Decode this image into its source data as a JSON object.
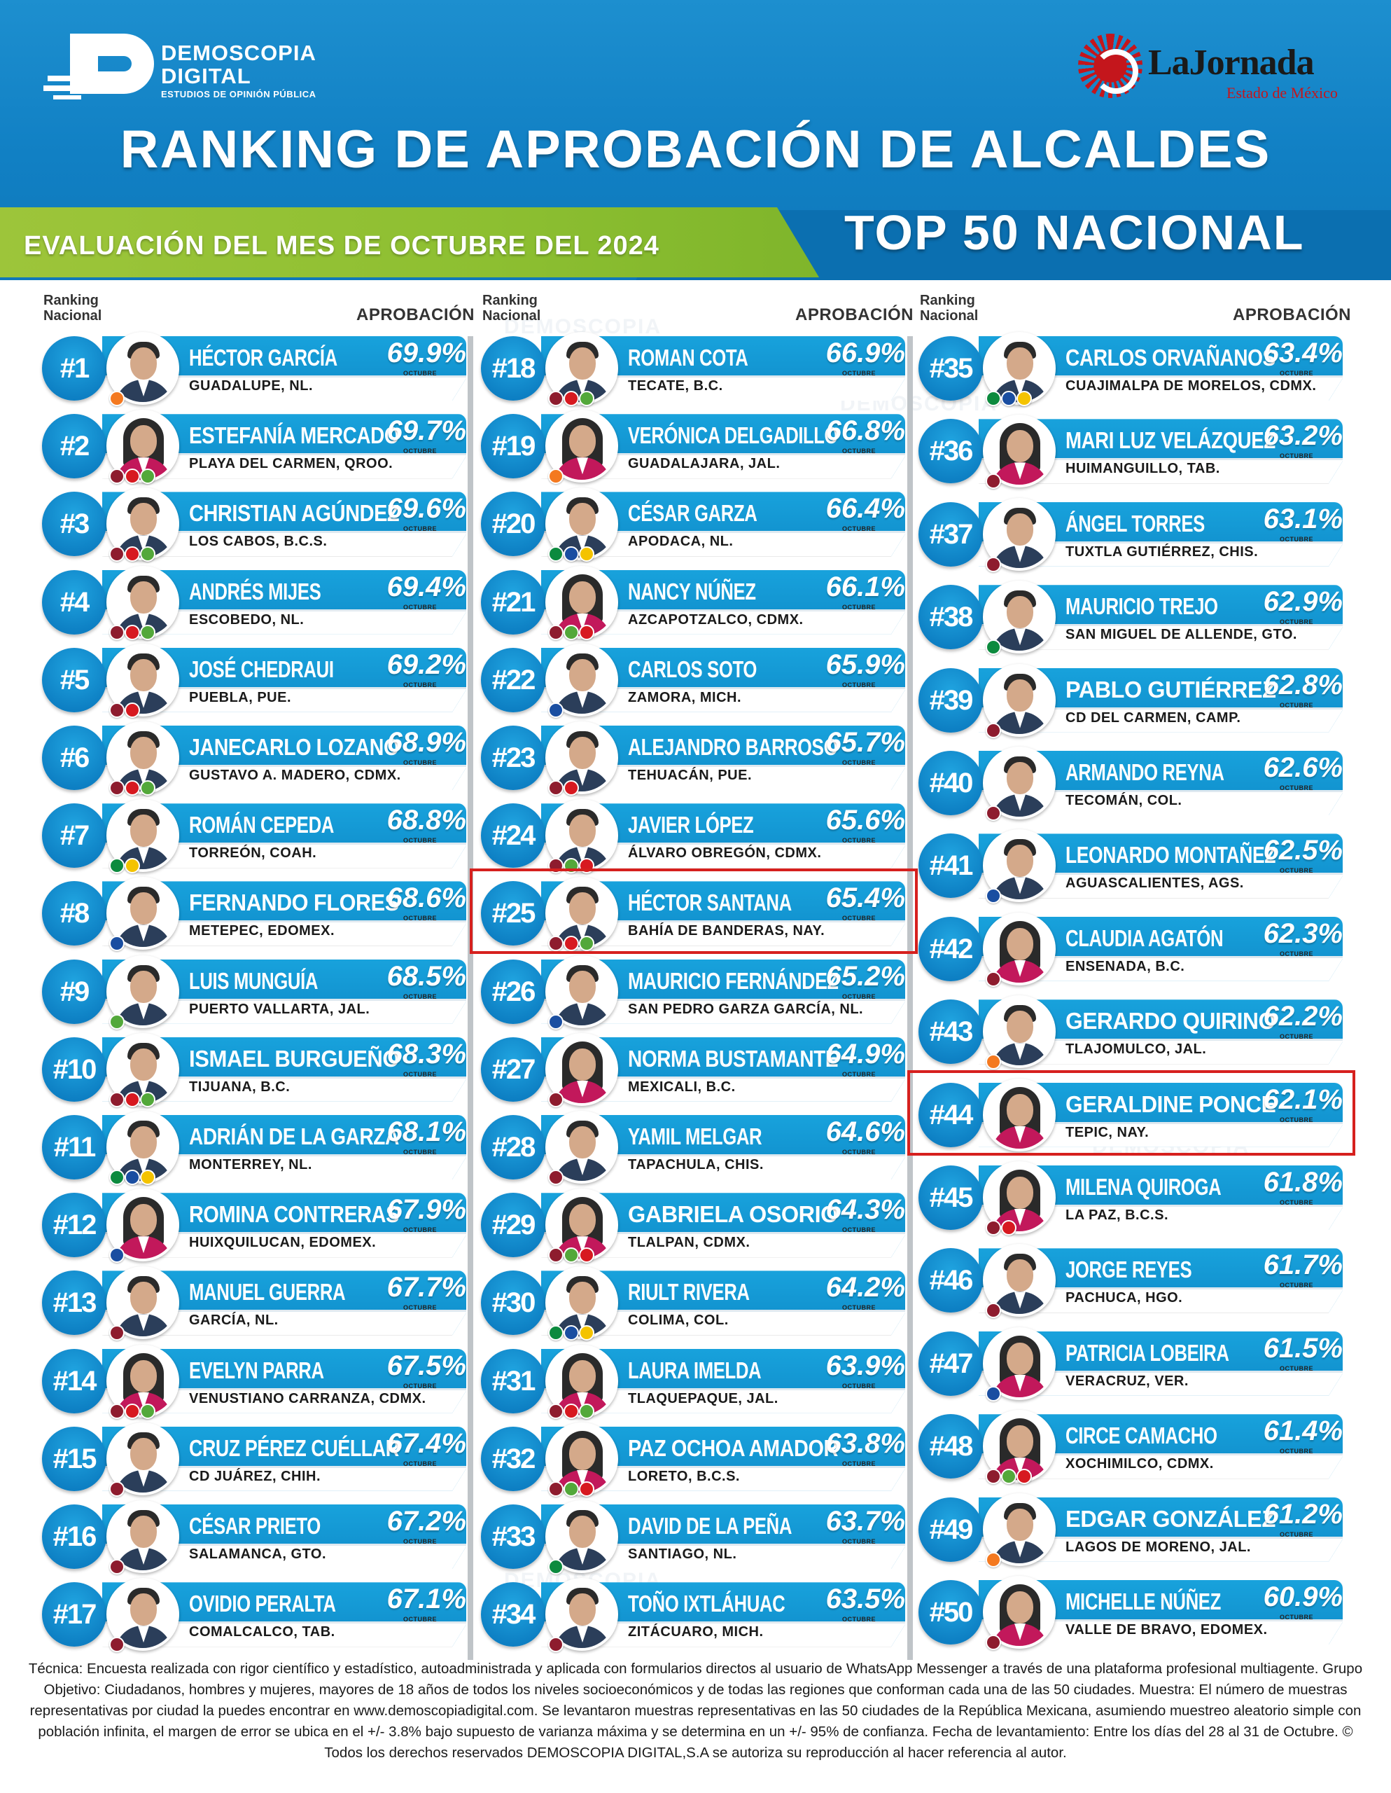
{
  "header": {
    "logo_left": {
      "line1": "DEMOSCOPIA",
      "line2": "DIGITAL",
      "line3": "ESTUDIOS DE OPINIÓN PÚBLICA"
    },
    "logo_right": {
      "name": "LaJornada",
      "sub": "Estado de México"
    },
    "title": "RANKING DE APROBACIÓN DE ALCALDES",
    "evaluation": "EVALUACIÓN DEL MES DE OCTUBRE DEL 2024",
    "top": "TOP 50 NACIONAL",
    "colors": {
      "blue": "#1180c4",
      "green": "#8dbf31",
      "highlight": "#d6201e"
    }
  },
  "labels": {
    "ranking": "Ranking",
    "nacional": "Nacional",
    "aprobacion": "APROBACIÓN",
    "month": "OCTUBRE"
  },
  "mayors": [
    {
      "rank": "#1",
      "name": "HÉCTOR GARCÍA",
      "pct": "69.9%",
      "city": "GUADALUPE, NL.",
      "parties": [
        "mc"
      ],
      "gender": "m"
    },
    {
      "rank": "#2",
      "name": "ESTEFANÍA MERCADO",
      "pct": "69.7%",
      "city": "PLAYA DEL CARMEN, QROO.",
      "parties": [
        "morena",
        "pt",
        "pvem"
      ],
      "gender": "f"
    },
    {
      "rank": "#3",
      "name": "CHRISTIAN AGÚNDEZ",
      "pct": "69.6%",
      "city": "LOS CABOS, B.C.S.",
      "parties": [
        "morena",
        "pt",
        "pvem"
      ],
      "gender": "m"
    },
    {
      "rank": "#4",
      "name": "ANDRÉS MIJES",
      "pct": "69.4%",
      "city": "ESCOBEDO, NL.",
      "parties": [
        "morena",
        "pt",
        "pvem"
      ],
      "gender": "m"
    },
    {
      "rank": "#5",
      "name": "JOSÉ CHEDRAUI",
      "pct": "69.2%",
      "city": "PUEBLA, PUE.",
      "parties": [
        "morena",
        "pt"
      ],
      "gender": "m"
    },
    {
      "rank": "#6",
      "name": "JANECARLO LOZANO",
      "pct": "68.9%",
      "city": "GUSTAVO A. MADERO, CDMX.",
      "parties": [
        "morena",
        "pt",
        "pvem"
      ],
      "gender": "m"
    },
    {
      "rank": "#7",
      "name": "ROMÁN CEPEDA",
      "pct": "68.8%",
      "city": "TORREÓN, COAH.",
      "parties": [
        "pri",
        "prd"
      ],
      "gender": "m"
    },
    {
      "rank": "#8",
      "name": "FERNANDO FLORES",
      "pct": "68.6%",
      "city": "METEPEC, EDOMEX.",
      "parties": [
        "pan"
      ],
      "gender": "m"
    },
    {
      "rank": "#9",
      "name": "LUIS MUNGUÍA",
      "pct": "68.5%",
      "city": "PUERTO VALLARTA, JAL.",
      "parties": [
        "pvem"
      ],
      "gender": "m"
    },
    {
      "rank": "#10",
      "name": "ISMAEL BURGUEÑO",
      "pct": "68.3%",
      "city": "TIJUANA, B.C.",
      "parties": [
        "morena",
        "pt",
        "pvem"
      ],
      "gender": "m"
    },
    {
      "rank": "#11",
      "name": "ADRIÁN DE LA GARZA",
      "pct": "68.1%",
      "city": "MONTERREY, NL.",
      "parties": [
        "pri",
        "pan",
        "prd"
      ],
      "gender": "m"
    },
    {
      "rank": "#12",
      "name": "ROMINA CONTRERAS",
      "pct": "67.9%",
      "city": "HUIXQUILUCAN, EDOMEX.",
      "parties": [
        "pan"
      ],
      "gender": "f"
    },
    {
      "rank": "#13",
      "name": "MANUEL GUERRA",
      "pct": "67.7%",
      "city": "GARCÍA, NL.",
      "parties": [
        "morena"
      ],
      "gender": "m"
    },
    {
      "rank": "#14",
      "name": "EVELYN PARRA",
      "pct": "67.5%",
      "city": "VENUSTIANO CARRANZA, CDMX.",
      "parties": [
        "morena",
        "pt",
        "pvem"
      ],
      "gender": "f"
    },
    {
      "rank": "#15",
      "name": "CRUZ PÉREZ CUÉLLAR",
      "pct": "67.4%",
      "city": "CD JUÁREZ, CHIH.",
      "parties": [
        "morena"
      ],
      "gender": "m"
    },
    {
      "rank": "#16",
      "name": "CÉSAR PRIETO",
      "pct": "67.2%",
      "city": "SALAMANCA, GTO.",
      "parties": [
        "morena"
      ],
      "gender": "m"
    },
    {
      "rank": "#17",
      "name": "OVIDIO PERALTA",
      "pct": "67.1%",
      "city": "COMALCALCO, TAB.",
      "parties": [
        "morena"
      ],
      "gender": "m"
    },
    {
      "rank": "#18",
      "name": "ROMAN COTA",
      "pct": "66.9%",
      "city": "TECATE, B.C.",
      "parties": [
        "morena",
        "pt",
        "pvem"
      ],
      "gender": "m"
    },
    {
      "rank": "#19",
      "name": "VERÓNICA DELGADILLO",
      "pct": "66.8%",
      "city": "GUADALAJARA, JAL.",
      "parties": [
        "mc"
      ],
      "gender": "f"
    },
    {
      "rank": "#20",
      "name": "CÉSAR GARZA",
      "pct": "66.4%",
      "city": "APODACA, NL.",
      "parties": [
        "pri",
        "pan",
        "prd"
      ],
      "gender": "m"
    },
    {
      "rank": "#21",
      "name": "NANCY NÚÑEZ",
      "pct": "66.1%",
      "city": "AZCAPOTZALCO, CDMX.",
      "parties": [
        "morena",
        "pvem",
        "pt"
      ],
      "gender": "f"
    },
    {
      "rank": "#22",
      "name": "CARLOS SOTO",
      "pct": "65.9%",
      "city": "ZAMORA, MICH.",
      "parties": [
        "pan"
      ],
      "gender": "m"
    },
    {
      "rank": "#23",
      "name": "ALEJANDRO BARROSO",
      "pct": "65.7%",
      "city": "TEHUACÁN, PUE.",
      "parties": [
        "morena",
        "pt"
      ],
      "gender": "m"
    },
    {
      "rank": "#24",
      "name": "JAVIER LÓPEZ",
      "pct": "65.6%",
      "city": "ÁLVARO OBREGÓN, CDMX.",
      "parties": [
        "morena",
        "pvem",
        "pt"
      ],
      "gender": "m"
    },
    {
      "rank": "#25",
      "name": "HÉCTOR SANTANA",
      "pct": "65.4%",
      "city": "BAHÍA DE BANDERAS, NAY.",
      "parties": [
        "morena",
        "pt",
        "pvem"
      ],
      "gender": "m"
    },
    {
      "rank": "#26",
      "name": "MAURICIO FERNÁNDEZ",
      "pct": "65.2%",
      "city": "SAN PEDRO GARZA GARCÍA, NL.",
      "parties": [
        "pan"
      ],
      "gender": "m"
    },
    {
      "rank": "#27",
      "name": "NORMA BUSTAMANTE",
      "pct": "64.9%",
      "city": "MEXICALI, B.C.",
      "parties": [
        "morena"
      ],
      "gender": "f"
    },
    {
      "rank": "#28",
      "name": "YAMIL MELGAR",
      "pct": "64.6%",
      "city": "TAPACHULA, CHIS.",
      "parties": [
        "morena"
      ],
      "gender": "m"
    },
    {
      "rank": "#29",
      "name": "GABRIELA OSORIO",
      "pct": "64.3%",
      "city": "TLALPAN, CDMX.",
      "parties": [
        "morena",
        "pvem",
        "pt"
      ],
      "gender": "f"
    },
    {
      "rank": "#30",
      "name": "RIULT RIVERA",
      "pct": "64.2%",
      "city": "COLIMA, COL.",
      "parties": [
        "pri",
        "pan",
        "prd"
      ],
      "gender": "m"
    },
    {
      "rank": "#31",
      "name": "LAURA IMELDA",
      "pct": "63.9%",
      "city": "TLAQUEPAQUE, JAL.",
      "parties": [
        "morena",
        "pt",
        "pvem"
      ],
      "gender": "f"
    },
    {
      "rank": "#32",
      "name": "PAZ OCHOA AMADOR",
      "pct": "63.8%",
      "city": "LORETO, B.C.S.",
      "parties": [
        "morena",
        "pvem",
        "pt"
      ],
      "gender": "f"
    },
    {
      "rank": "#33",
      "name": "DAVID DE LA PEÑA",
      "pct": "63.7%",
      "city": "SANTIAGO, NL.",
      "parties": [
        "pri"
      ],
      "gender": "m"
    },
    {
      "rank": "#34",
      "name": "TOÑO IXTLÁHUAC",
      "pct": "63.5%",
      "city": "ZITÁCUARO, MICH.",
      "parties": [
        "morena"
      ],
      "gender": "m"
    },
    {
      "rank": "#35",
      "name": "CARLOS ORVAÑANOS",
      "pct": "63.4%",
      "city": "CUAJIMALPA DE MORELOS, CDMX.",
      "parties": [
        "pri",
        "pan",
        "prd"
      ],
      "gender": "m"
    },
    {
      "rank": "#36",
      "name": "MARI LUZ VELÁZQUEZ",
      "pct": "63.2%",
      "city": "HUIMANGUILLO, TAB.",
      "parties": [
        "morena"
      ],
      "gender": "f"
    },
    {
      "rank": "#37",
      "name": "ÁNGEL TORRES",
      "pct": "63.1%",
      "city": "TUXTLA GUTIÉRREZ, CHIS.",
      "parties": [
        "morena"
      ],
      "gender": "m"
    },
    {
      "rank": "#38",
      "name": "MAURICIO TREJO",
      "pct": "62.9%",
      "city": "SAN MIGUEL DE ALLENDE, GTO.",
      "parties": [
        "pri"
      ],
      "gender": "m"
    },
    {
      "rank": "#39",
      "name": "PABLO GUTIÉRREZ",
      "pct": "62.8%",
      "city": "CD DEL CARMEN, CAMP.",
      "parties": [
        "morena"
      ],
      "gender": "m"
    },
    {
      "rank": "#40",
      "name": "ARMANDO REYNA",
      "pct": "62.6%",
      "city": "TECOMÁN, COL.",
      "parties": [
        "morena"
      ],
      "gender": "m"
    },
    {
      "rank": "#41",
      "name": "LEONARDO MONTAÑEZ",
      "pct": "62.5%",
      "city": "AGUASCALIENTES, AGS.",
      "parties": [
        "pan"
      ],
      "gender": "m"
    },
    {
      "rank": "#42",
      "name": "CLAUDIA AGATÓN",
      "pct": "62.3%",
      "city": "ENSENADA, B.C.",
      "parties": [
        "morena"
      ],
      "gender": "f"
    },
    {
      "rank": "#43",
      "name": "GERARDO QUIRINO",
      "pct": "62.2%",
      "city": "TLAJOMULCO, JAL.",
      "parties": [
        "mc"
      ],
      "gender": "m"
    },
    {
      "rank": "#44",
      "name": "GERALDINE PONCE",
      "pct": "62.1%",
      "city": "TEPIC, NAY.",
      "parties": [],
      "gender": "f"
    },
    {
      "rank": "#45",
      "name": "MILENA QUIROGA",
      "pct": "61.8%",
      "city": "LA PAZ, B.C.S.",
      "parties": [
        "morena",
        "pt"
      ],
      "gender": "f"
    },
    {
      "rank": "#46",
      "name": "JORGE REYES",
      "pct": "61.7%",
      "city": "PACHUCA, HGO.",
      "parties": [
        "morena"
      ],
      "gender": "m"
    },
    {
      "rank": "#47",
      "name": "PATRICIA LOBEIRA",
      "pct": "61.5%",
      "city": "VERACRUZ, VER.",
      "parties": [
        "pan"
      ],
      "gender": "f"
    },
    {
      "rank": "#48",
      "name": "CIRCE CAMACHO",
      "pct": "61.4%",
      "city": "XOCHIMILCO, CDMX.",
      "parties": [
        "morena",
        "pvem",
        "pt"
      ],
      "gender": "f"
    },
    {
      "rank": "#49",
      "name": "EDGAR GONZÁLEZ",
      "pct": "61.2%",
      "city": "LAGOS DE MORENO, JAL.",
      "parties": [
        "mc"
      ],
      "gender": "m"
    },
    {
      "rank": "#50",
      "name": "MICHELLE NÚÑEZ",
      "pct": "60.9%",
      "city": "VALLE DE BRAVO, EDOMEX.",
      "parties": [
        "morena"
      ],
      "gender": "f"
    }
  ],
  "highlighted_ranks": [
    "#25",
    "#44"
  ],
  "footer": "Técnica: Encuesta realizada con rigor científico y estadístico, autoadministrada y aplicada con formularios directos al usuario de WhatsApp Messenger a través de una plataforma profesional multiagente. Grupo Objetivo: Ciudadanos, hombres y mujeres, mayores de 18 años de todos los niveles socioeconómicos y de todas las regiones que conforman cada una de las 50 ciudades. Muestra: El número de muestras representativas por ciudad la puedes encontrar en www.demoscopiadigital.com. Se levantaron muestras representativas en las 50 ciudades de la República Mexicana, asumiendo muestreo aleatorio simple con población infinita, el margen de error se ubica en el +/- 3.8% bajo supuesto de varianza máxima y se determina en un +/- 95% de confianza. Fecha de levantamiento: Entre los días del 28 al 31 de Octubre. © Todos los derechos reservados DEMOSCOPIA DIGITAL,S.A se autoriza su reproducción al hacer referencia al autor."
}
